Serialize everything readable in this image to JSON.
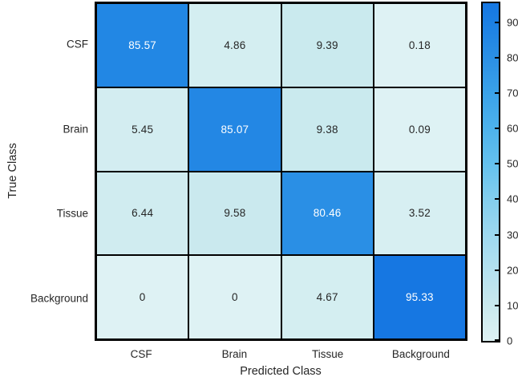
{
  "figure": {
    "background": "#ffffff"
  },
  "chart_data": {
    "type": "heatmap",
    "subtype": "confusion-matrix",
    "title": "",
    "xlabel": "Predicted Class",
    "ylabel": "True Class",
    "x_categories": [
      "CSF",
      "Brain",
      "Tissue",
      "Background"
    ],
    "y_categories": [
      "CSF",
      "Brain",
      "Tissue",
      "Background"
    ],
    "values": [
      [
        85.57,
        4.86,
        9.39,
        0.18
      ],
      [
        5.45,
        85.07,
        9.38,
        0.09
      ],
      [
        6.44,
        9.58,
        80.46,
        3.52
      ],
      [
        0,
        0,
        4.67,
        95.33
      ]
    ],
    "cell_labels": [
      [
        "85.57",
        "4.86",
        "9.39",
        "0.18"
      ],
      [
        "5.45",
        "85.07",
        "9.38",
        "0.09"
      ],
      [
        "6.44",
        "9.58",
        "80.46",
        "3.52"
      ],
      [
        "0",
        "0",
        "4.67",
        "95.33"
      ]
    ],
    "colorbar": {
      "min": 0,
      "max": 95.33,
      "ticks": [
        0,
        10,
        20,
        30,
        40,
        50,
        60,
        70,
        80,
        90
      ],
      "position": "right"
    },
    "colormap": [
      {
        "v": 0,
        "c": "#def2f4"
      },
      {
        "v": 10,
        "c": "#c9e9ee"
      },
      {
        "v": 20,
        "c": "#b4e1ef"
      },
      {
        "v": 30,
        "c": "#9dd8ef"
      },
      {
        "v": 40,
        "c": "#83ceee"
      },
      {
        "v": 50,
        "c": "#64c1ee"
      },
      {
        "v": 60,
        "c": "#4db2ec"
      },
      {
        "v": 70,
        "c": "#3aa2e9"
      },
      {
        "v": 80,
        "c": "#2b90e5"
      },
      {
        "v": 90,
        "c": "#1b7fe3"
      },
      {
        "v": 95.33,
        "c": "#1677e2"
      }
    ],
    "grid_color": "#000000",
    "text_color_dark": "#262626",
    "text_color_light": "#ffffff",
    "light_text_threshold": 50,
    "legend": "none",
    "grid": "cell-borders"
  }
}
